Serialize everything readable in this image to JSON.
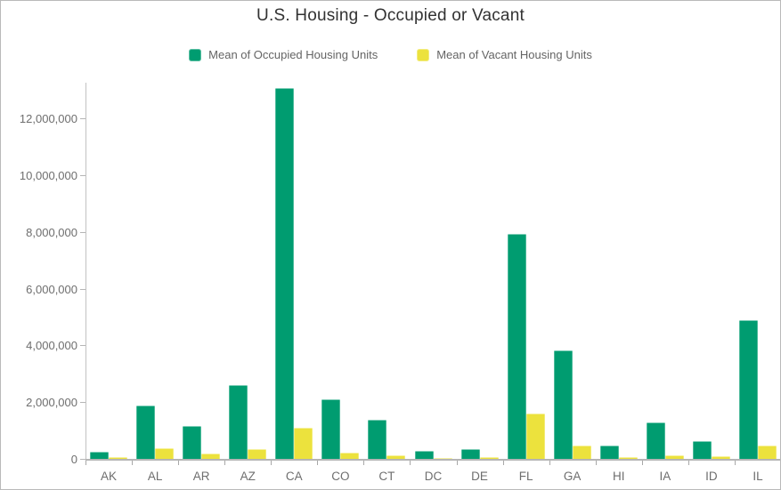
{
  "chart_data": {
    "type": "bar",
    "title": "U.S. Housing - Occupied or Vacant",
    "categories": [
      "AK",
      "AL",
      "AR",
      "AZ",
      "CA",
      "CO",
      "CT",
      "DC",
      "DE",
      "FL",
      "GA",
      "HI",
      "IA",
      "ID",
      "IL"
    ],
    "series": [
      {
        "name": "Mean of Occupied Housing Units",
        "color": "#009c70",
        "values": [
          260000,
          1870000,
          1150000,
          2610000,
          13080000,
          2100000,
          1370000,
          270000,
          350000,
          7940000,
          3820000,
          460000,
          1270000,
          630000,
          4890000
        ]
      },
      {
        "name": "Mean of Vacant Housing Units",
        "color": "#ece23d",
        "values": [
          60000,
          370000,
          180000,
          360000,
          1100000,
          210000,
          140000,
          30000,
          60000,
          1600000,
          480000,
          70000,
          140000,
          80000,
          470000
        ]
      }
    ],
    "xlabel": "",
    "ylabel": "",
    "ylim": [
      0,
      13300000
    ],
    "yticks": [
      0,
      2000000,
      4000000,
      6000000,
      8000000,
      10000000,
      12000000
    ],
    "ytick_labels": [
      "0",
      "2,000,000",
      "4,000,000",
      "6,000,000",
      "8,000,000",
      "10,000,000",
      "12,000,000"
    ],
    "grid": false,
    "legend_position": "top-center"
  },
  "colors": {
    "occupied": "#009c70",
    "vacant": "#ece23d",
    "axis_text": "#6e6e6e",
    "title_text": "#323232",
    "axis_line": "#b5b5b5"
  }
}
